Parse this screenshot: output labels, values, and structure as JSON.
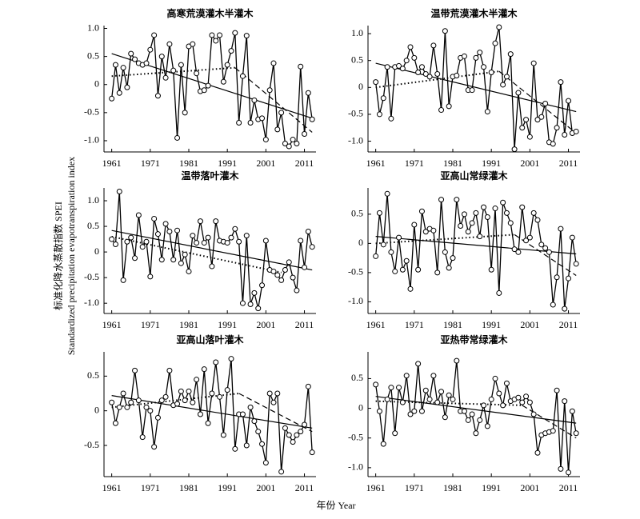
{
  "xlabel": "年份 Year",
  "ylabel": [
    "标准化降水蒸散指数 SPEI",
    "Standardized precipitation evapotranspiration index"
  ],
  "chart_data": [
    {
      "type": "line",
      "title": "高寒荒漠灌木半灌木",
      "x": [
        1961,
        1962,
        1963,
        1964,
        1965,
        1966,
        1967,
        1968,
        1969,
        1970,
        1971,
        1972,
        1973,
        1974,
        1975,
        1976,
        1977,
        1978,
        1979,
        1980,
        1981,
        1982,
        1983,
        1984,
        1985,
        1986,
        1987,
        1988,
        1989,
        1990,
        1991,
        1992,
        1993,
        1994,
        1995,
        1996,
        1997,
        1998,
        1999,
        2000,
        2001,
        2002,
        2003,
        2004,
        2005,
        2006,
        2007,
        2008,
        2009,
        2010,
        2011,
        2012,
        2013
      ],
      "values": [
        -0.25,
        0.35,
        -0.15,
        0.3,
        -0.05,
        0.55,
        0.45,
        0.38,
        0.35,
        0.38,
        0.62,
        0.88,
        -0.2,
        0.5,
        0.12,
        0.72,
        0.25,
        -0.95,
        0.35,
        -0.5,
        0.68,
        0.72,
        0.2,
        -0.12,
        -0.1,
        -0.02,
        0.88,
        0.78,
        0.88,
        0.05,
        0.35,
        0.6,
        0.92,
        -0.68,
        0.15,
        0.87,
        -0.68,
        -0.28,
        -0.62,
        -0.6,
        -0.98,
        -0.1,
        0.38,
        -0.8,
        -0.5,
        -1.05,
        -1.1,
        -0.98,
        -1.05,
        0.32,
        -0.88,
        -0.15,
        -0.62
      ],
      "lines": [
        {
          "style": "solid",
          "x": [
            1961,
            2013
          ],
          "values": [
            0.55,
            -0.6
          ]
        },
        {
          "style": "dotted",
          "x": [
            1961,
            1993
          ],
          "values": [
            0.15,
            0.3
          ]
        },
        {
          "style": "dashed",
          "x": [
            1993,
            2013
          ],
          "values": [
            0.3,
            -0.85
          ]
        }
      ],
      "xlim": [
        1959,
        2014
      ],
      "xticks": [
        1961,
        1971,
        1981,
        1991,
        2001,
        2011
      ],
      "ylim": [
        -1.2,
        1.05
      ],
      "yticks": [
        {
          "value": -1,
          "label": "-1.0"
        },
        -0.5,
        0,
        0.5,
        {
          "value": 1,
          "label": "1.0"
        }
      ]
    },
    {
      "type": "line",
      "title": "温带荒漠灌木半灌木",
      "x": [
        1961,
        1962,
        1963,
        1964,
        1965,
        1966,
        1967,
        1968,
        1969,
        1970,
        1971,
        1972,
        1973,
        1974,
        1975,
        1976,
        1977,
        1978,
        1979,
        1980,
        1981,
        1982,
        1983,
        1984,
        1985,
        1986,
        1987,
        1988,
        1989,
        1990,
        1991,
        1992,
        1993,
        1994,
        1995,
        1996,
        1997,
        1998,
        1999,
        2000,
        2001,
        2002,
        2003,
        2004,
        2005,
        2006,
        2007,
        2008,
        2009,
        2010,
        2011,
        2012,
        2013
      ],
      "values": [
        0.1,
        -0.5,
        -0.2,
        0.38,
        -0.58,
        0.38,
        0.4,
        0.35,
        0.5,
        0.75,
        0.55,
        0.28,
        0.38,
        0.25,
        0.2,
        0.78,
        0.25,
        -0.42,
        1.05,
        -0.35,
        0.2,
        0.22,
        0.55,
        0.58,
        -0.05,
        -0.05,
        0.55,
        0.65,
        0.38,
        -0.45,
        0.28,
        0.82,
        1.12,
        0.05,
        0.2,
        0.62,
        -1.15,
        -0.1,
        -0.75,
        -0.6,
        -0.92,
        0.45,
        -0.6,
        -0.55,
        -0.3,
        -1.02,
        -1.05,
        -0.75,
        0.1,
        -0.88,
        -0.25,
        -0.85,
        -0.82
      ],
      "lines": [
        {
          "style": "solid",
          "x": [
            1961,
            2013
          ],
          "values": [
            0.45,
            -0.45
          ]
        },
        {
          "style": "dotted",
          "x": [
            1961,
            1993
          ],
          "values": [
            0,
            0.3
          ]
        },
        {
          "style": "dashed",
          "x": [
            1993,
            2013
          ],
          "values": [
            0.3,
            -0.85
          ]
        }
      ],
      "xlim": [
        1959,
        2014
      ],
      "xticks": [
        1961,
        1971,
        1981,
        1991,
        2001,
        2011
      ],
      "ylim": [
        -1.2,
        1.15
      ],
      "yticks": [
        {
          "value": -1,
          "label": "-1.0"
        },
        -0.5,
        0,
        0.5,
        {
          "value": 1,
          "label": "1.0"
        }
      ]
    },
    {
      "type": "line",
      "title": "温带落叶灌木",
      "x": [
        1961,
        1962,
        1963,
        1964,
        1965,
        1966,
        1967,
        1968,
        1969,
        1970,
        1971,
        1972,
        1973,
        1974,
        1975,
        1976,
        1977,
        1978,
        1979,
        1980,
        1981,
        1982,
        1983,
        1984,
        1985,
        1986,
        1987,
        1988,
        1989,
        1990,
        1991,
        1992,
        1993,
        1994,
        1995,
        1996,
        1997,
        1998,
        1999,
        2000,
        2001,
        2002,
        2003,
        2004,
        2005,
        2006,
        2007,
        2008,
        2009,
        2010,
        2011,
        2012,
        2013
      ],
      "values": [
        0.25,
        0.15,
        1.18,
        -0.55,
        0.2,
        0.28,
        -0.12,
        0.72,
        0.1,
        0.2,
        -0.48,
        0.65,
        0.35,
        -0.15,
        0.55,
        0.4,
        -0.15,
        0.42,
        -0.22,
        -0.05,
        -0.38,
        0.32,
        0.18,
        0.6,
        0.18,
        0.28,
        -0.28,
        0.6,
        0.22,
        0.2,
        0.18,
        0.28,
        0.45,
        0.2,
        -1.0,
        0.32,
        -1.02,
        -0.8,
        -1.1,
        -0.65,
        0.22,
        -0.35,
        -0.38,
        -0.45,
        -0.55,
        -0.35,
        -0.2,
        -0.5,
        -0.75,
        0.22,
        -0.3,
        0.4,
        0.1
      ],
      "lines": [
        {
          "style": "solid",
          "x": [
            1961,
            2013
          ],
          "values": [
            0.42,
            -0.35
          ]
        },
        {
          "style": "dotted",
          "x": [
            1961,
            2005
          ],
          "values": [
            0.3,
            -0.4
          ]
        }
      ],
      "xlim": [
        1959,
        2014
      ],
      "xticks": [
        1961,
        1971,
        1981,
        1991,
        2001,
        2011
      ],
      "ylim": [
        -1.2,
        1.25
      ],
      "yticks": [
        {
          "value": -1,
          "label": "-1.0"
        },
        -0.5,
        0,
        0.5,
        {
          "value": 1,
          "label": "1.0"
        }
      ]
    },
    {
      "type": "line",
      "title": "亚高山常绿灌木",
      "x": [
        1961,
        1962,
        1963,
        1964,
        1965,
        1966,
        1967,
        1968,
        1969,
        1970,
        1971,
        1972,
        1973,
        1974,
        1975,
        1976,
        1977,
        1978,
        1979,
        1980,
        1981,
        1982,
        1983,
        1984,
        1985,
        1986,
        1987,
        1988,
        1989,
        1990,
        1991,
        1992,
        1993,
        1994,
        1995,
        1996,
        1997,
        1998,
        1999,
        2000,
        2001,
        2002,
        2003,
        2004,
        2005,
        2006,
        2007,
        2008,
        2009,
        2010,
        2011,
        2012,
        2013
      ],
      "values": [
        -0.22,
        0.52,
        -0.02,
        0.85,
        -0.15,
        -0.48,
        0.1,
        -0.45,
        -0.3,
        -0.78,
        0.32,
        -0.45,
        0.55,
        0.2,
        0.25,
        0.22,
        -0.5,
        0.75,
        -0.15,
        -0.42,
        -0.25,
        0.75,
        0.3,
        0.5,
        0.2,
        0.35,
        0.52,
        0.12,
        0.62,
        0.45,
        -0.45,
        0.6,
        -0.85,
        0.7,
        0.52,
        0.35,
        -0.1,
        -0.15,
        0.62,
        0.05,
        0.1,
        0.52,
        0.4,
        -0.02,
        -0.08,
        -0.15,
        -1.05,
        -0.58,
        0.25,
        -1.12,
        -0.6,
        0.1,
        -0.35
      ],
      "lines": [
        {
          "style": "solid",
          "x": [
            1961,
            2013
          ],
          "values": [
            0.12,
            -0.18
          ]
        },
        {
          "style": "dotted",
          "x": [
            1961,
            1997
          ],
          "values": [
            0,
            0.15
          ]
        },
        {
          "style": "dashed",
          "x": [
            1997,
            2013
          ],
          "values": [
            0.15,
            -0.55
          ]
        }
      ],
      "xlim": [
        1959,
        2014
      ],
      "xticks": [
        1961,
        1971,
        1981,
        1991,
        2001,
        2011
      ],
      "ylim": [
        -1.2,
        0.95
      ],
      "yticks": [
        {
          "value": -1,
          "label": "-1.0"
        },
        -0.5,
        0,
        0.5
      ]
    },
    {
      "type": "line",
      "title": "亚高山落叶灌木",
      "x": [
        1961,
        1962,
        1963,
        1964,
        1965,
        1966,
        1967,
        1968,
        1969,
        1970,
        1971,
        1972,
        1973,
        1974,
        1975,
        1976,
        1977,
        1978,
        1979,
        1980,
        1981,
        1982,
        1983,
        1984,
        1985,
        1986,
        1987,
        1988,
        1989,
        1990,
        1991,
        1992,
        1993,
        1994,
        1995,
        1996,
        1997,
        1998,
        1999,
        2000,
        2001,
        2002,
        2003,
        2004,
        2005,
        2006,
        2007,
        2008,
        2009,
        2010,
        2011,
        2012,
        2013
      ],
      "values": [
        0.12,
        -0.18,
        0.05,
        0.25,
        0.05,
        0.12,
        0.58,
        0.15,
        -0.38,
        0.05,
        0.0,
        -0.52,
        -0.1,
        0.15,
        0.2,
        0.58,
        0.08,
        0.1,
        0.28,
        0.15,
        0.28,
        0.12,
        0.45,
        -0.05,
        0.6,
        -0.18,
        0.25,
        0.7,
        0.2,
        -0.35,
        0.3,
        0.75,
        -0.55,
        -0.05,
        -0.05,
        -0.5,
        0.05,
        -0.15,
        -0.3,
        -0.48,
        -0.75,
        0.25,
        0.12,
        0.25,
        -0.88,
        -0.25,
        -0.35,
        -0.45,
        -0.35,
        -0.3,
        -0.2,
        0.35,
        -0.6
      ],
      "lines": [
        {
          "style": "solid",
          "x": [
            1961,
            2013
          ],
          "values": [
            0.22,
            -0.25
          ]
        },
        {
          "style": "dotted",
          "x": [
            1961,
            1994
          ],
          "values": [
            0.05,
            0.25
          ]
        },
        {
          "style": "dashed",
          "x": [
            1994,
            2013
          ],
          "values": [
            0.25,
            -0.3
          ]
        }
      ],
      "xlim": [
        1959,
        2014
      ],
      "xticks": [
        1961,
        1971,
        1981,
        1991,
        2001,
        2011
      ],
      "ylim": [
        -0.95,
        0.85
      ],
      "yticks": [
        -0.5,
        0,
        0.5
      ]
    },
    {
      "type": "line",
      "title": "亚热带常绿灌木",
      "x": [
        1961,
        1962,
        1963,
        1964,
        1965,
        1966,
        1967,
        1968,
        1969,
        1970,
        1971,
        1972,
        1973,
        1974,
        1975,
        1976,
        1977,
        1978,
        1979,
        1980,
        1981,
        1982,
        1983,
        1984,
        1985,
        1986,
        1987,
        1988,
        1989,
        1990,
        1991,
        1992,
        1993,
        1994,
        1995,
        1996,
        1997,
        1998,
        1999,
        2000,
        2001,
        2002,
        2003,
        2004,
        2005,
        2006,
        2007,
        2008,
        2009,
        2010,
        2011,
        2012,
        2013
      ],
      "values": [
        0.4,
        -0.05,
        -0.6,
        0.15,
        0.35,
        -0.42,
        0.35,
        0.1,
        0.55,
        -0.1,
        -0.05,
        0.75,
        -0.05,
        0.3,
        0.15,
        0.55,
        0.1,
        0.28,
        -0.15,
        0.22,
        0.15,
        0.8,
        -0.05,
        -0.05,
        -0.2,
        -0.1,
        -0.42,
        -0.2,
        0.05,
        -0.3,
        0.15,
        0.5,
        0.25,
        0.05,
        0.42,
        0.12,
        0.15,
        0.18,
        0.1,
        0.2,
        0.1,
        -0.1,
        -0.75,
        -0.45,
        -0.42,
        -0.4,
        -0.38,
        0.3,
        -1.02,
        0.12,
        -1.08,
        -0.05,
        -0.42
      ],
      "lines": [
        {
          "style": "solid",
          "x": [
            1961,
            2013
          ],
          "values": [
            0.2,
            -0.25
          ]
        },
        {
          "style": "dotted",
          "x": [
            1961,
            1999
          ],
          "values": [
            0.12,
            0.05
          ]
        },
        {
          "style": "dashed",
          "x": [
            1999,
            2013
          ],
          "values": [
            0.05,
            -0.5
          ]
        }
      ],
      "xlim": [
        1959,
        2014
      ],
      "xticks": [
        1961,
        1971,
        1981,
        1991,
        2001,
        2011
      ],
      "ylim": [
        -1.15,
        0.95
      ],
      "yticks": [
        {
          "value": -1,
          "label": "-1.0"
        },
        -0.5,
        0,
        0.5
      ]
    }
  ]
}
